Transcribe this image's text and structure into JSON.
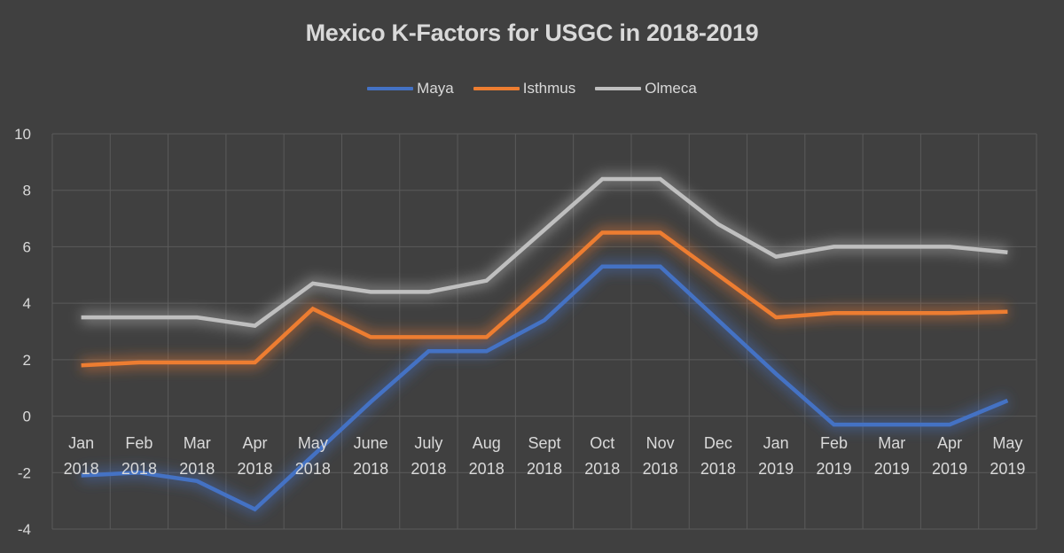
{
  "chart_data": {
    "type": "line",
    "title": "Mexico K-Factors for USGC in 2018-2019",
    "xlabel": "",
    "ylabel": "",
    "ylim": [
      -4,
      10
    ],
    "yticks": [
      10,
      8,
      6,
      4,
      2,
      0,
      -2,
      -4
    ],
    "grid": true,
    "legend": "top",
    "categories": [
      [
        "Jan",
        "2018"
      ],
      [
        "Feb",
        "2018"
      ],
      [
        "Mar",
        "2018"
      ],
      [
        "Apr",
        "2018"
      ],
      [
        "May",
        "2018"
      ],
      [
        "June",
        "2018"
      ],
      [
        "July",
        "2018"
      ],
      [
        "Aug",
        "2018"
      ],
      [
        "Sept",
        "2018"
      ],
      [
        "Oct",
        "2018"
      ],
      [
        "Nov",
        "2018"
      ],
      [
        "Dec",
        "2018"
      ],
      [
        "Jan",
        "2019"
      ],
      [
        "Feb",
        "2019"
      ],
      [
        "Mar",
        "2019"
      ],
      [
        "Apr",
        "2019"
      ],
      [
        "May",
        "2019"
      ]
    ],
    "series": [
      {
        "name": "Maya",
        "color": "#4472c4",
        "values": [
          -2.1,
          -2.0,
          -2.3,
          -3.3,
          -1.4,
          0.5,
          2.3,
          2.3,
          3.4,
          5.3,
          5.3,
          3.4,
          1.5,
          -0.3,
          -0.3,
          -0.3,
          0.55
        ]
      },
      {
        "name": "Isthmus",
        "color": "#ed7d31",
        "values": [
          1.8,
          1.9,
          1.9,
          1.9,
          3.8,
          2.8,
          2.8,
          2.8,
          4.6,
          6.5,
          6.5,
          5.0,
          3.5,
          3.65,
          3.65,
          3.65,
          3.7
        ]
      },
      {
        "name": "Olmeca",
        "color": "#bfbfbf",
        "values": [
          3.5,
          3.5,
          3.5,
          3.2,
          4.7,
          4.4,
          4.4,
          4.8,
          6.6,
          8.4,
          8.4,
          6.8,
          5.65,
          6.0,
          6.0,
          6.0,
          5.8
        ]
      }
    ]
  },
  "colors": {
    "background": "#404040",
    "gridline": "#5a5a5a",
    "text": "#d9d9d9"
  }
}
